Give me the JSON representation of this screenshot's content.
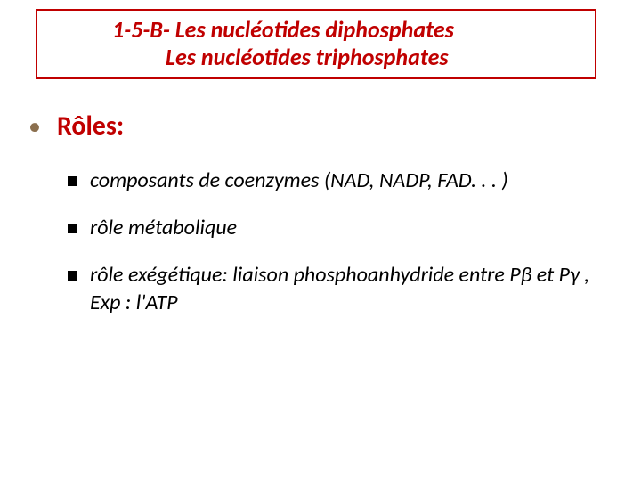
{
  "colors": {
    "title_border": "#c00000",
    "title_text": "#c00000",
    "roles_bullet": "#8b6f4e",
    "roles_text": "#c00000",
    "sub_bullet": "#000000",
    "body_text": "#000000",
    "background": "#ffffff"
  },
  "title": {
    "line1": "1-5-B- Les nucléotides diphosphates",
    "line2": "Les nucléotides triphosphates"
  },
  "roles_label": "Rôles:",
  "items": [
    "composants de coenzymes (NAD, NADP, FAD. . . )",
    "rôle métabolique",
    "rôle exégétique: liaison phosphoanhydride entre Pβ et Pγ , Exp : l'ATP"
  ],
  "typography": {
    "title_fontsize": 26,
    "roles_fontsize": 30,
    "item_fontsize": 24
  }
}
